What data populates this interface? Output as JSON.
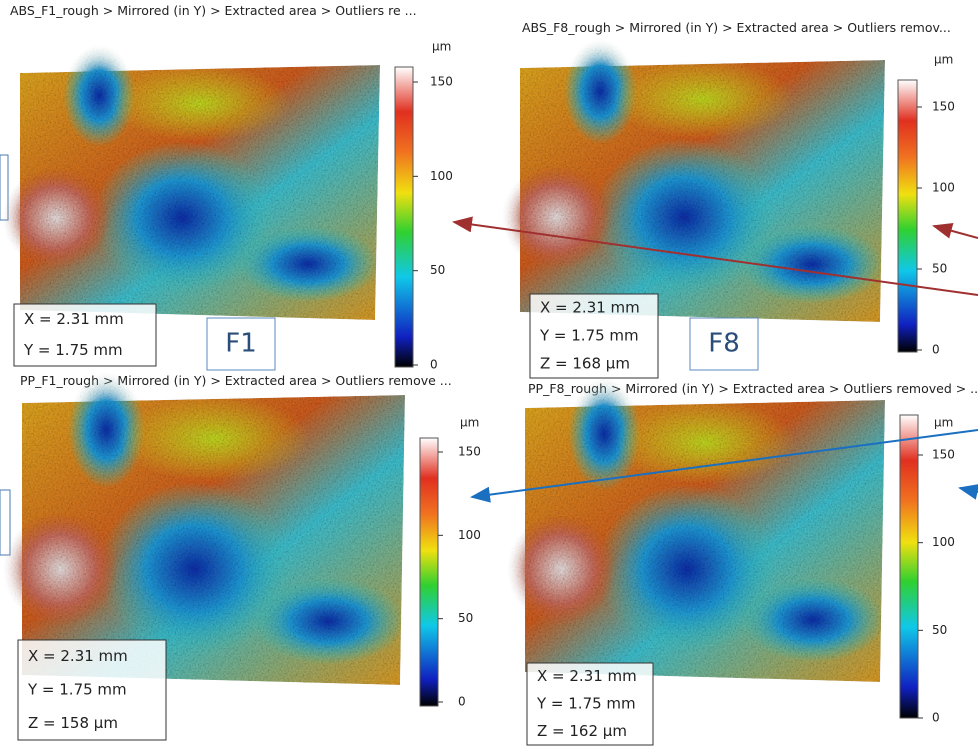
{
  "panels": [
    {
      "title": "ABS_F1_rough > Mirrored (in Y) > Extracted area > Outliers re ...",
      "unit": "µm",
      "colorbar_ticks": [
        150,
        100,
        50,
        0
      ],
      "info": [
        "X = 2.31 mm",
        "Y = 1.75 mm"
      ],
      "label": "F1"
    },
    {
      "title": "ABS_F8_rough > Mirrored (in Y) > Extracted area > Outliers remov...",
      "unit": "µm",
      "colorbar_ticks": [
        150,
        100,
        50,
        0
      ],
      "info": [
        "X = 2.31 mm",
        "Y = 1.75 mm",
        "Z = 168 µm"
      ],
      "label": "F8"
    },
    {
      "title": "PP_F1_rough > Mirrored (in Y) > Extracted area > Outliers remove ...",
      "unit": "µm",
      "colorbar_ticks": [
        150,
        100,
        50,
        0
      ],
      "info": [
        "X = 2.31 mm",
        "Y = 1.75 mm",
        "Z = 158 µm"
      ]
    },
    {
      "title": "PP_F8_rough > Mirrored (in Y) > Extracted area > Outliers removed > ...",
      "unit": "µm",
      "colorbar_ticks": [
        150,
        100,
        50,
        0
      ],
      "info": [
        "X = 2.31 mm",
        "Y = 1.75 mm",
        "Z = 162 µm"
      ]
    }
  ]
}
